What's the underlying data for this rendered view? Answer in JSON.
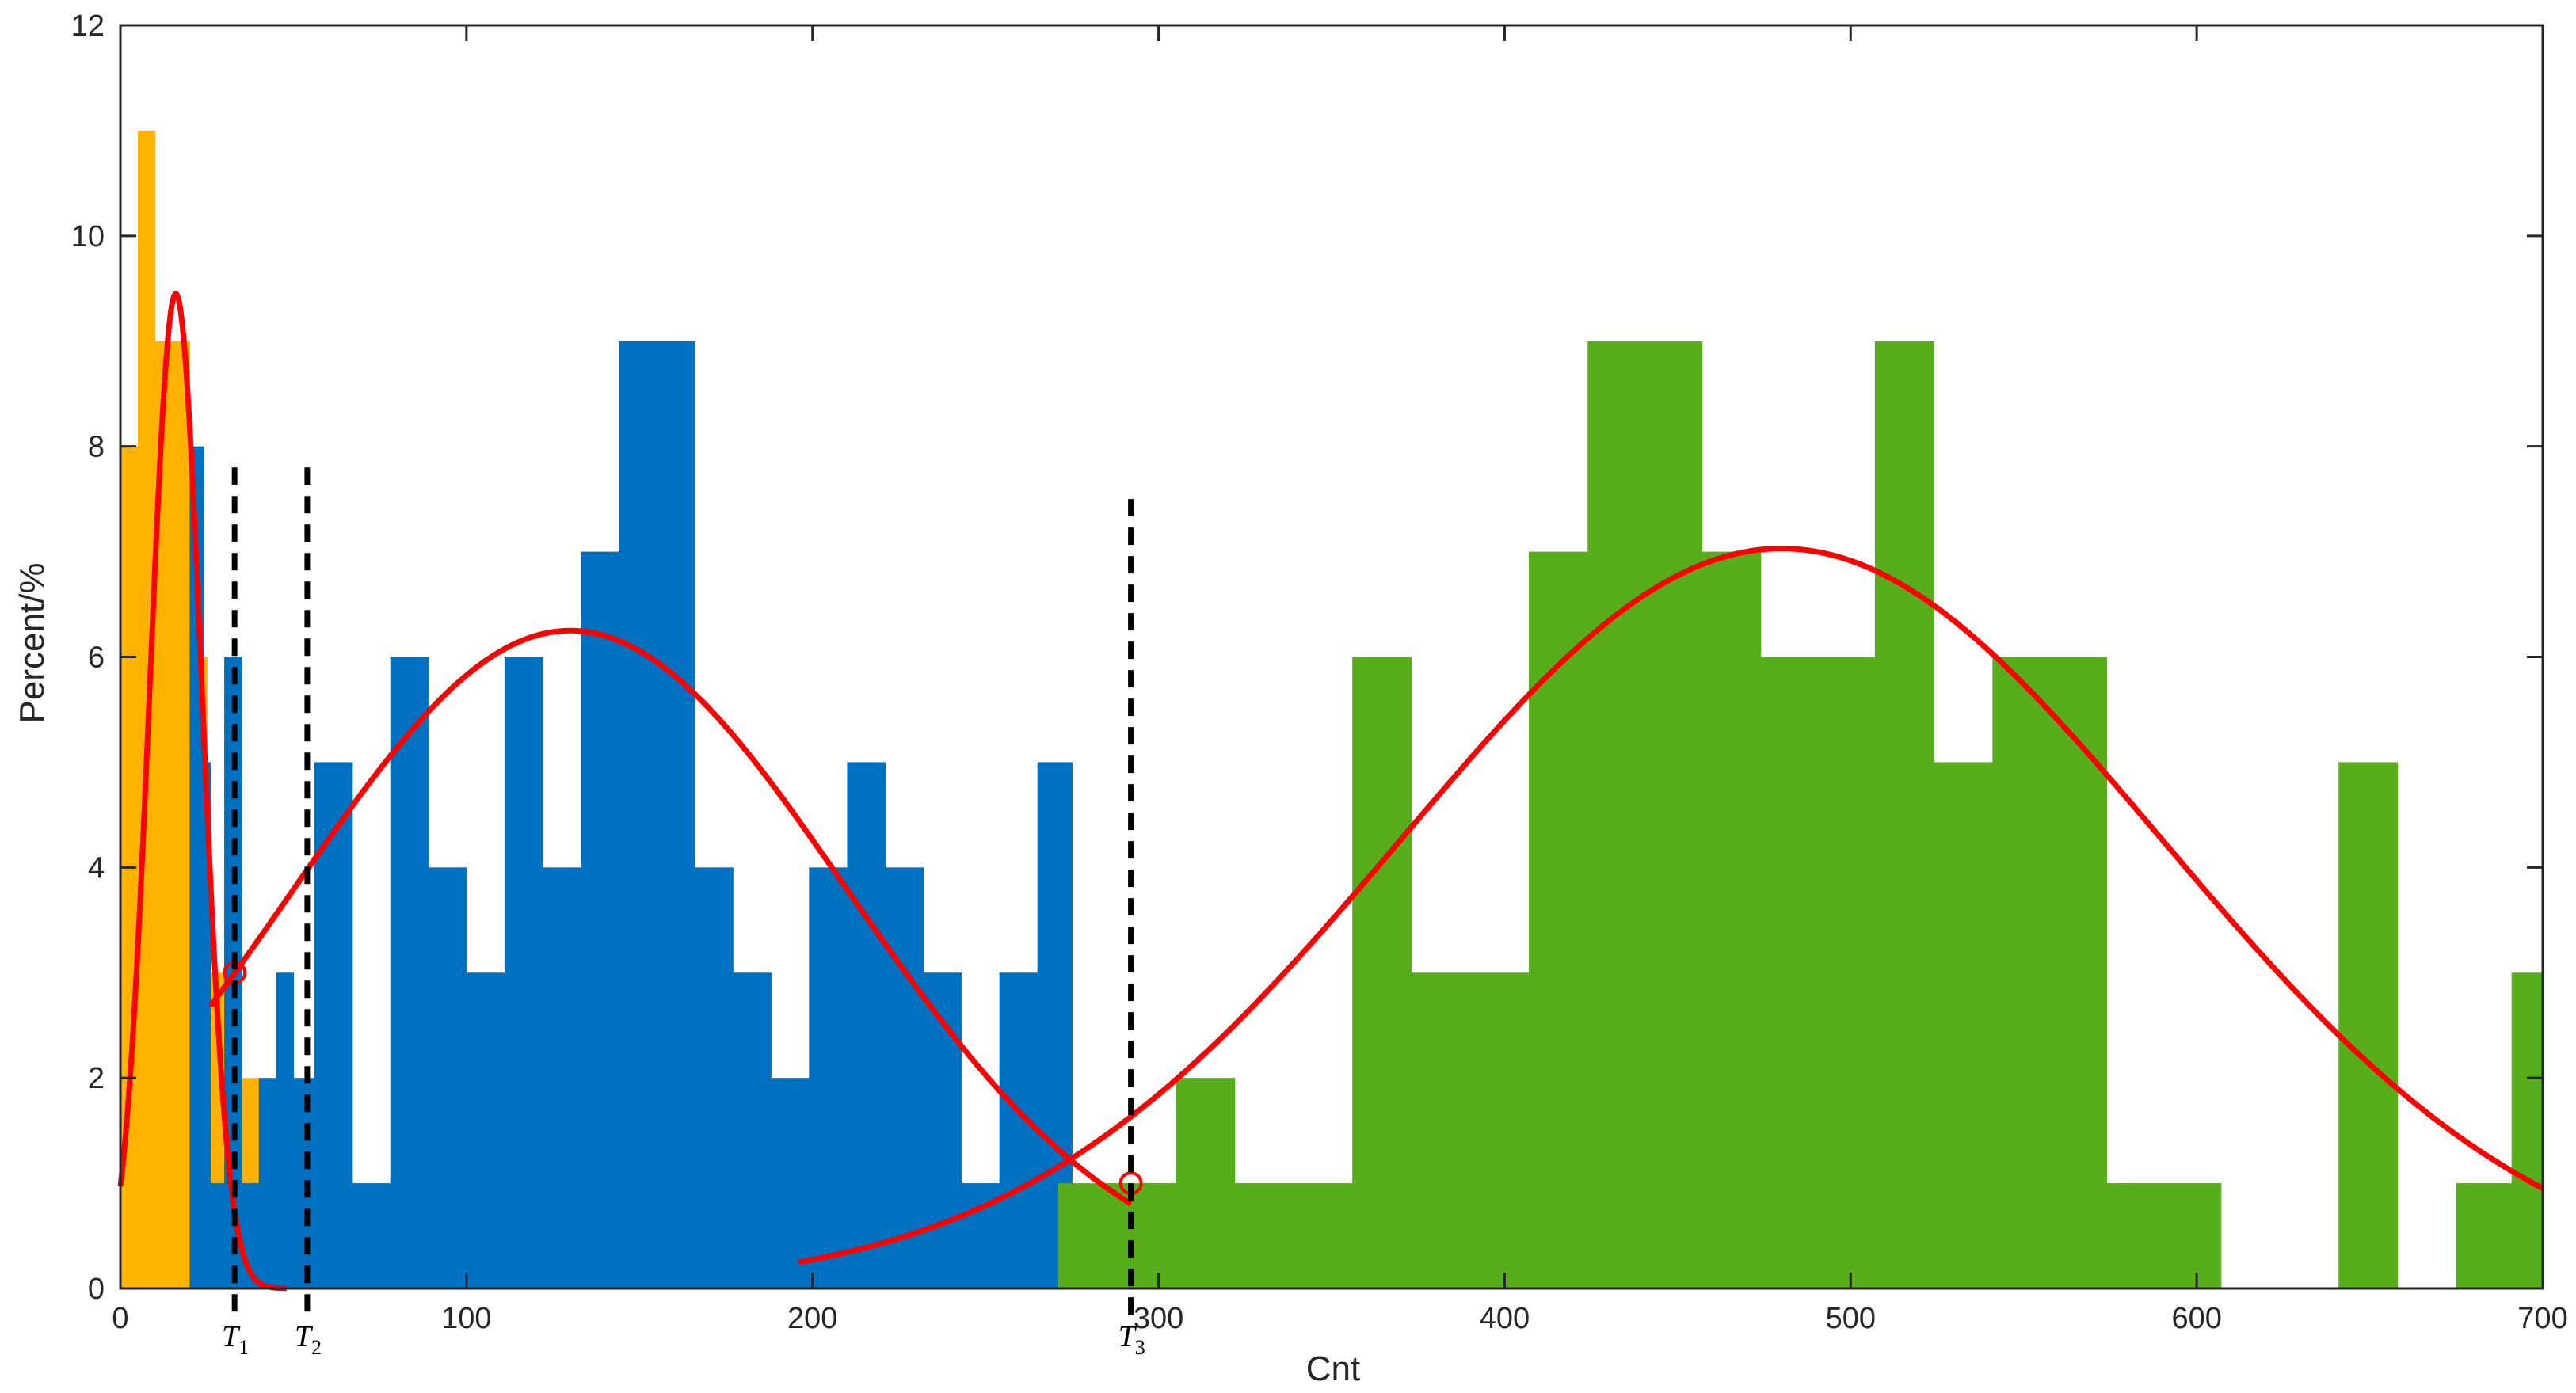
{
  "chart_data": {
    "type": "bar",
    "xlabel": "Cnt",
    "ylabel": "Percent/%",
    "xlim": [
      0,
      700
    ],
    "ylim": [
      0,
      12
    ],
    "xticks": [
      0,
      100,
      200,
      300,
      400,
      500,
      600,
      700
    ],
    "yticks": [
      0,
      2,
      4,
      6,
      8,
      10,
      12
    ],
    "grid": false,
    "series": [
      {
        "color": "#FFB300",
        "bins": [
          {
            "x0": 0,
            "x1": 5,
            "y": 8
          },
          {
            "x0": 5,
            "x1": 10,
            "y": 11
          },
          {
            "x0": 10,
            "x1": 20,
            "y": 9
          },
          {
            "x0": 20,
            "x1": 25,
            "y": 6
          },
          {
            "x0": 25,
            "x1": 30,
            "y": 3
          },
          {
            "x0": 30,
            "x1": 35,
            "y": 4
          },
          {
            "x0": 35,
            "x1": 40,
            "y": 2
          },
          {
            "x0": 40,
            "x1": 45,
            "y": 1
          },
          {
            "x0": 45,
            "x1": 50,
            "y": 0
          },
          {
            "x0": 50,
            "x1": 55,
            "y": 1
          }
        ]
      },
      {
        "color": "#0070C0",
        "bins": [
          {
            "x0": 20,
            "x1": 24,
            "y": 8
          },
          {
            "x0": 24,
            "x1": 26,
            "y": 5
          },
          {
            "x0": 26,
            "x1": 30,
            "y": 1
          },
          {
            "x0": 30,
            "x1": 35,
            "y": 6
          },
          {
            "x0": 35,
            "x1": 40,
            "y": 1
          },
          {
            "x0": 40,
            "x1": 45,
            "y": 2
          },
          {
            "x0": 45,
            "x1": 50,
            "y": 3
          },
          {
            "x0": 50,
            "x1": 56,
            "y": 2
          },
          {
            "x0": 56,
            "x1": 67,
            "y": 5
          },
          {
            "x0": 67,
            "x1": 78,
            "y": 1
          },
          {
            "x0": 78,
            "x1": 89,
            "y": 6
          },
          {
            "x0": 89,
            "x1": 100,
            "y": 4
          },
          {
            "x0": 100,
            "x1": 111,
            "y": 3
          },
          {
            "x0": 111,
            "x1": 122,
            "y": 6
          },
          {
            "x0": 122,
            "x1": 133,
            "y": 4
          },
          {
            "x0": 133,
            "x1": 144,
            "y": 7
          },
          {
            "x0": 144,
            "x1": 166,
            "y": 9
          },
          {
            "x0": 166,
            "x1": 177,
            "y": 4
          },
          {
            "x0": 177,
            "x1": 188,
            "y": 3
          },
          {
            "x0": 188,
            "x1": 199,
            "y": 2
          },
          {
            "x0": 199,
            "x1": 210,
            "y": 4
          },
          {
            "x0": 210,
            "x1": 221,
            "y": 5
          },
          {
            "x0": 221,
            "x1": 232,
            "y": 4
          },
          {
            "x0": 232,
            "x1": 243,
            "y": 3
          },
          {
            "x0": 243,
            "x1": 254,
            "y": 1
          },
          {
            "x0": 254,
            "x1": 265,
            "y": 3
          },
          {
            "x0": 265,
            "x1": 275,
            "y": 5
          }
        ]
      },
      {
        "color": "#58AD1B",
        "bins": [
          {
            "x0": 271,
            "x1": 305,
            "y": 1
          },
          {
            "x0": 305,
            "x1": 322,
            "y": 2
          },
          {
            "x0": 322,
            "x1": 356,
            "y": 1
          },
          {
            "x0": 356,
            "x1": 373,
            "y": 6
          },
          {
            "x0": 373,
            "x1": 407,
            "y": 3
          },
          {
            "x0": 407,
            "x1": 424,
            "y": 7
          },
          {
            "x0": 424,
            "x1": 457,
            "y": 9
          },
          {
            "x0": 457,
            "x1": 474,
            "y": 7
          },
          {
            "x0": 474,
            "x1": 507,
            "y": 6
          },
          {
            "x0": 507,
            "x1": 524,
            "y": 9
          },
          {
            "x0": 524,
            "x1": 541,
            "y": 5
          },
          {
            "x0": 541,
            "x1": 574,
            "y": 6
          },
          {
            "x0": 574,
            "x1": 607,
            "y": 1
          },
          {
            "x0": 607,
            "x1": 641,
            "y": 0
          },
          {
            "x0": 641,
            "x1": 658,
            "y": 5
          },
          {
            "x0": 658,
            "x1": 675,
            "y": 0
          },
          {
            "x0": 675,
            "x1": 691,
            "y": 1
          },
          {
            "x0": 691,
            "x1": 700,
            "y": 3
          }
        ]
      }
    ],
    "fit_curves": [
      {
        "color": "#FF0000",
        "mean": 16,
        "sd": 7.5,
        "peak": 9.45,
        "x_from": 0,
        "x_to": 48
      },
      {
        "color": "#FF0000",
        "mean": 130,
        "sd": 80,
        "peak": 6.25,
        "x_from": 26,
        "x_to": 292
      },
      {
        "color": "#FF0000",
        "mean": 480,
        "sd": 110,
        "peak": 7.03,
        "x_from": 196,
        "x_to": 700
      }
    ],
    "intersections": [
      {
        "x": 33,
        "y": 3.0
      },
      {
        "x": 292,
        "y": 1.0
      }
    ],
    "thresholds": [
      {
        "name": "T",
        "sub": "1",
        "x": 33,
        "y_top": 7.8
      },
      {
        "name": "T",
        "sub": "2",
        "x": 54,
        "y_top": 7.8
      },
      {
        "name": "T",
        "sub": "3",
        "x": 292,
        "y_top": 7.5
      }
    ]
  }
}
